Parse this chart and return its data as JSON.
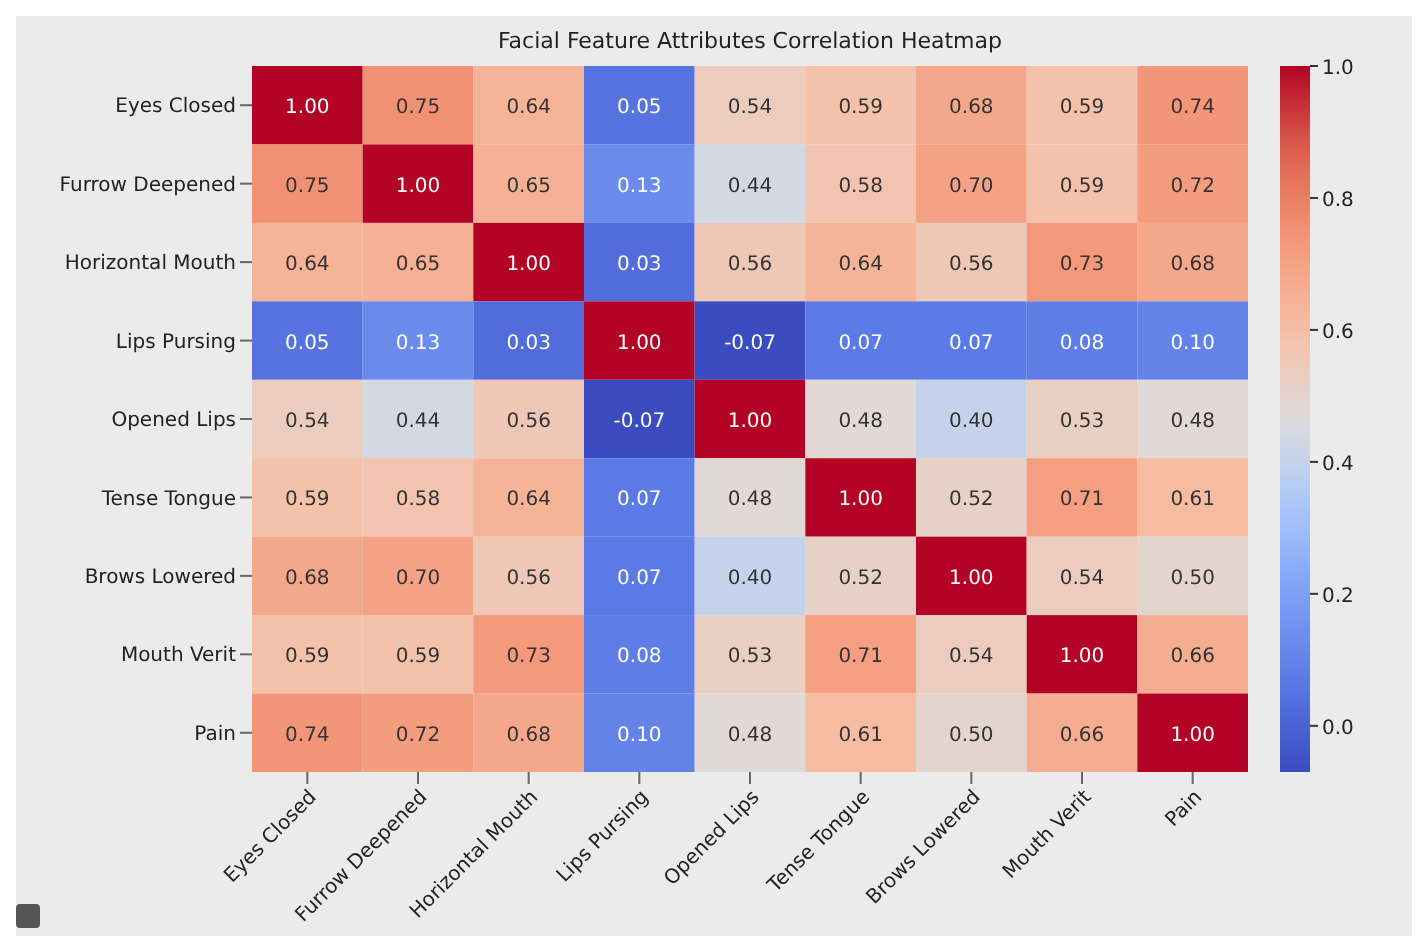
{
  "chart_data": {
    "type": "heatmap",
    "title": "Facial Feature Attributes Correlation Heatmap",
    "categories": [
      "Eyes Closed",
      "Furrow Deepened",
      "Horizontal Mouth",
      "Lips Pursing",
      "Opened Lips",
      "Tense Tongue",
      "Brows Lowered",
      "Mouth Verit",
      "Pain"
    ],
    "y_categories": [
      "Eyes Closed",
      "Furrow Deepened",
      "Horizontal Mouth",
      "Lips Pursing",
      "Opened Lips",
      "Tense Tongue",
      "Brows Lowered",
      "Mouth Verit",
      "Pain"
    ],
    "cells": [
      [
        1.0,
        0.75,
        0.64,
        0.05,
        0.54,
        0.59,
        0.68,
        0.59,
        0.74
      ],
      [
        0.75,
        1.0,
        0.65,
        0.13,
        0.44,
        0.58,
        0.7,
        0.59,
        0.72
      ],
      [
        0.64,
        0.65,
        1.0,
        0.03,
        0.56,
        0.64,
        0.56,
        0.73,
        0.68
      ],
      [
        0.05,
        0.13,
        0.03,
        1.0,
        -0.07,
        0.07,
        0.07,
        0.08,
        0.1
      ],
      [
        0.54,
        0.44,
        0.56,
        -0.07,
        1.0,
        0.48,
        0.4,
        0.53,
        0.48
      ],
      [
        0.59,
        0.58,
        0.64,
        0.07,
        0.48,
        1.0,
        0.52,
        0.71,
        0.61
      ],
      [
        0.68,
        0.7,
        0.56,
        0.07,
        0.4,
        0.52,
        1.0,
        0.54,
        0.5
      ],
      [
        0.59,
        0.59,
        0.73,
        0.08,
        0.53,
        0.71,
        0.54,
        1.0,
        0.66
      ],
      [
        0.74,
        0.72,
        0.68,
        0.1,
        0.48,
        0.61,
        0.5,
        0.66,
        1.0
      ]
    ],
    "cell_labels": [
      [
        "1.00",
        "0.75",
        "0.64",
        "0.05",
        "0.54",
        "0.59",
        "0.68",
        "0.59",
        "0.74"
      ],
      [
        "0.75",
        "1.00",
        "0.65",
        "0.13",
        "0.44",
        "0.58",
        "0.70",
        "0.59",
        "0.72"
      ],
      [
        "0.64",
        "0.65",
        "1.00",
        "0.03",
        "0.56",
        "0.64",
        "0.56",
        "0.73",
        "0.68"
      ],
      [
        "0.05",
        "0.13",
        "0.03",
        "1.00",
        "-0.07",
        "0.07",
        "0.07",
        "0.08",
        "0.10"
      ],
      [
        "0.54",
        "0.44",
        "0.56",
        "-0.07",
        "1.00",
        "0.48",
        "0.40",
        "0.53",
        "0.48"
      ],
      [
        "0.59",
        "0.58",
        "0.64",
        "0.07",
        "0.48",
        "1.00",
        "0.52",
        "0.71",
        "0.61"
      ],
      [
        "0.68",
        "0.70",
        "0.56",
        "0.07",
        "0.40",
        "0.52",
        "1.00",
        "0.54",
        "0.50"
      ],
      [
        "0.59",
        "0.59",
        "0.73",
        "0.08",
        "0.53",
        "0.71",
        "0.54",
        "1.00",
        "0.66"
      ],
      [
        "0.74",
        "0.72",
        "0.68",
        "0.10",
        "0.48",
        "0.61",
        "0.50",
        "0.66",
        "1.00"
      ]
    ],
    "clim": [
      -0.07,
      1.0
    ],
    "cticks": [
      {
        "value": 0.0,
        "label": "0.0"
      },
      {
        "value": 0.2,
        "label": "0.2"
      },
      {
        "value": 0.4,
        "label": "0.4"
      },
      {
        "value": 0.6,
        "label": "0.6"
      },
      {
        "value": 0.8,
        "label": "0.8"
      },
      {
        "value": 1.0,
        "label": "1.0"
      }
    ]
  }
}
